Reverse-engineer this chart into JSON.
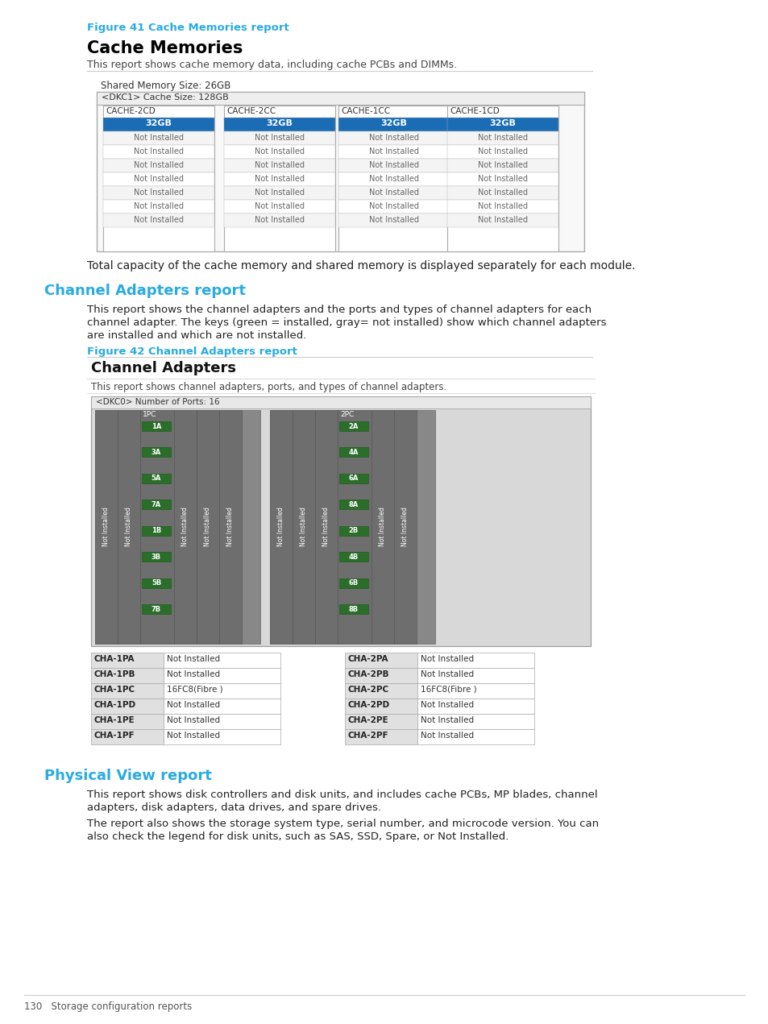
{
  "fig_width": 9.54,
  "fig_height": 12.71,
  "bg_color": "#ffffff",
  "cyan_color": "#29ABE2",
  "black_color": "#000000",
  "figure41_label": "Figure 41 Cache Memories report",
  "cache_title": "Cache Memories",
  "cache_subtitle": "This report shows cache memory data, including cache PCBs and DIMMs.",
  "shared_memory": "Shared Memory Size: 26GB",
  "dkc1_label": "<DKC1> Cache Size: 128GB",
  "cache_columns": [
    "CACHE-2CD",
    "CACHE-2CC",
    "CACHE-1CC",
    "CACHE-1CD"
  ],
  "cache_first_row": "32GB",
  "cache_other_rows": "Not Installed",
  "cache_num_other_rows": 7,
  "total_capacity_text": "Total capacity of the cache memory and shared memory is displayed separately for each module.",
  "channel_adapters_heading": "Channel Adapters report",
  "channel_adapters_body": "This report shows the channel adapters and the ports and types of channel adapters for each\nchannel adapter. The keys (green = installed, gray= not installed) show which channel adapters\nare installed and which are not installed.",
  "figure42_label": "Figure 42 Channel Adapters report",
  "cha_title": "Channel Adapters",
  "cha_subtitle": "This report shows channel adapters, ports, and types of channel adapters.",
  "dkc0_label": "<DKC0> Number of Ports: 16",
  "left_ports_label": "1PC",
  "right_ports_label": "2PC",
  "left_green_labels": [
    "1A",
    "3A",
    "5A",
    "7A",
    "1B",
    "3B",
    "5B",
    "7B"
  ],
  "right_green_labels": [
    "2A",
    "4A",
    "6A",
    "8A",
    "2B",
    "4B",
    "6B",
    "8B"
  ],
  "cha_table_left": [
    [
      "CHA-1PA",
      "Not Installed"
    ],
    [
      "CHA-1PB",
      "Not Installed"
    ],
    [
      "CHA-1PC",
      "16FC8(Fibre )"
    ],
    [
      "CHA-1PD",
      "Not Installed"
    ],
    [
      "CHA-1PE",
      "Not Installed"
    ],
    [
      "CHA-1PF",
      "Not Installed"
    ]
  ],
  "cha_table_right": [
    [
      "CHA-2PA",
      "Not Installed"
    ],
    [
      "CHA-2PB",
      "Not Installed"
    ],
    [
      "CHA-2PC",
      "16FC8(Fibre )"
    ],
    [
      "CHA-2PD",
      "Not Installed"
    ],
    [
      "CHA-2PE",
      "Not Installed"
    ],
    [
      "CHA-2PF",
      "Not Installed"
    ]
  ],
  "physical_view_heading": "Physical View report",
  "physical_view_body1": "This report shows disk controllers and disk units, and includes cache PCBs, MP blades, channel\nadapters, disk adapters, data drives, and spare drives.",
  "physical_view_body2": "The report also shows the storage system type, serial number, and microcode version. You can\nalso check the legend for disk units, such as SAS, SSD, Spare, or Not Installed.",
  "footer_text": "130   Storage configuration reports"
}
